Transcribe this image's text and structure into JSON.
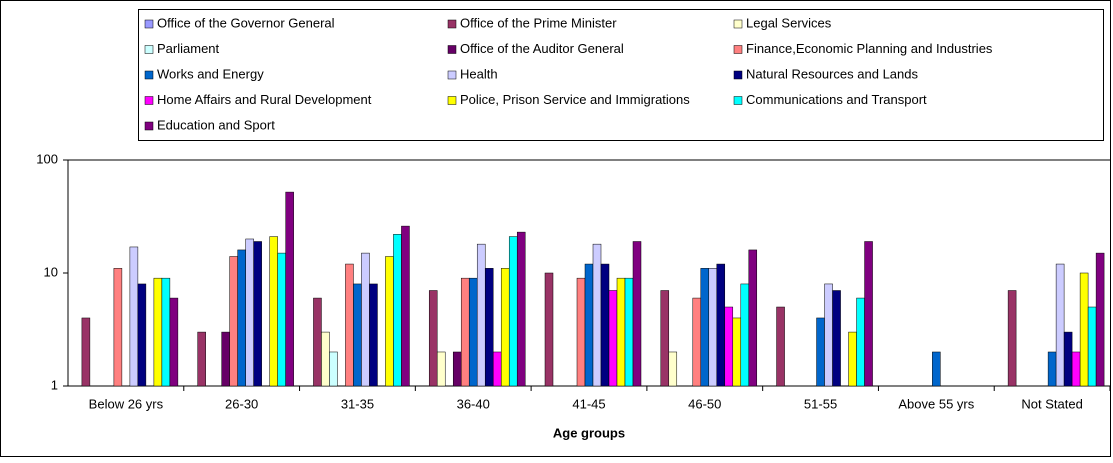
{
  "chart_data": {
    "type": "bar",
    "x_label": "Age groups",
    "categories": [
      "Below  26 yrs",
      "26-30",
      "31-35",
      "36-40",
      "41-45",
      "46-50",
      "51-55",
      "Above 55 yrs",
      "Not Stated"
    ],
    "log_scale": true,
    "ylim": [
      1,
      100
    ],
    "yticks": [
      1,
      10,
      100
    ],
    "grid": false,
    "series": [
      {
        "name": "Office of the Governor General",
        "color": "#9999FF",
        "values": [
          null,
          null,
          null,
          null,
          null,
          null,
          null,
          null,
          null
        ]
      },
      {
        "name": "Office of the Prime Minister",
        "color": "#993366",
        "values": [
          4,
          3,
          6,
          7,
          10,
          7,
          5,
          null,
          7
        ]
      },
      {
        "name": "Legal Services",
        "color": "#FFFFCC",
        "values": [
          null,
          null,
          3,
          2,
          null,
          2,
          null,
          null,
          null
        ]
      },
      {
        "name": "Parliament",
        "color": "#CCFFFF",
        "values": [
          null,
          null,
          2,
          null,
          null,
          null,
          null,
          null,
          null
        ]
      },
      {
        "name": "Office of the Auditor General",
        "color": "#660066",
        "values": [
          null,
          3,
          null,
          2,
          null,
          null,
          null,
          null,
          null
        ]
      },
      {
        "name": "Finance,Economic Planning and Industries",
        "color": "#FF8080",
        "values": [
          11,
          14,
          12,
          9,
          9,
          6,
          null,
          null,
          null
        ]
      },
      {
        "name": "Works and Energy",
        "color": "#0066CC",
        "values": [
          null,
          16,
          8,
          9,
          12,
          11,
          4,
          2,
          2
        ]
      },
      {
        "name": "Health",
        "color": "#CCCCFF",
        "values": [
          17,
          20,
          15,
          18,
          18,
          11,
          8,
          null,
          12
        ]
      },
      {
        "name": "Natural Resources and Lands",
        "color": "#000080",
        "values": [
          8,
          19,
          8,
          11,
          12,
          12,
          7,
          null,
          3
        ]
      },
      {
        "name": "Home Affairs and Rural Development",
        "color": "#FF00FF",
        "values": [
          null,
          null,
          null,
          2,
          7,
          5,
          null,
          null,
          2
        ]
      },
      {
        "name": "Police, Prison Service and Immigrations",
        "color": "#FFFF00",
        "values": [
          9,
          21,
          14,
          11,
          9,
          4,
          3,
          null,
          10
        ]
      },
      {
        "name": "Communications and Transport",
        "color": "#00FFFF",
        "values": [
          9,
          15,
          22,
          21,
          9,
          8,
          6,
          null,
          5
        ]
      },
      {
        "name": "Education and Sport",
        "color": "#800080",
        "values": [
          6,
          52,
          26,
          23,
          19,
          16,
          19,
          null,
          15
        ]
      }
    ]
  }
}
